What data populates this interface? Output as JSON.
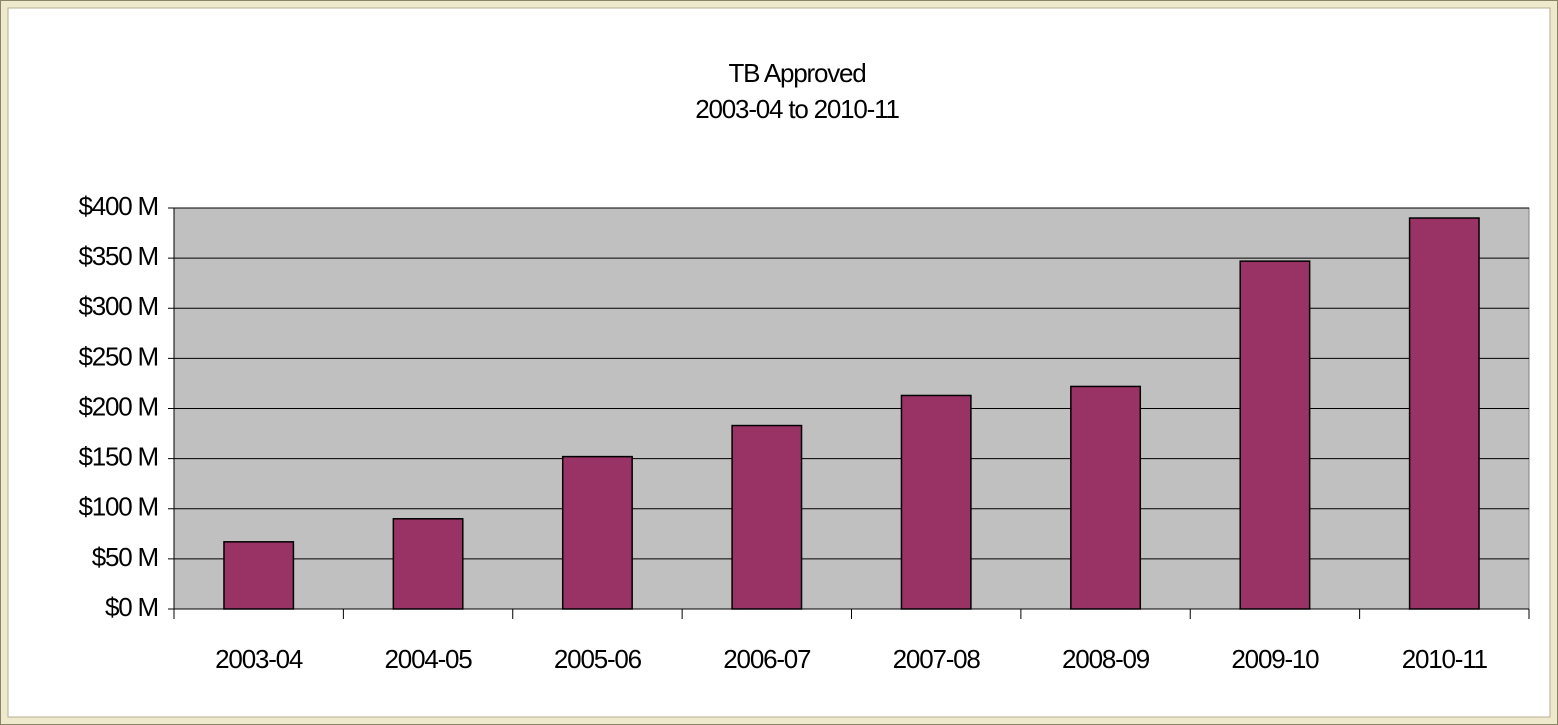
{
  "chart_data": {
    "type": "bar",
    "title": "TB Approved",
    "subtitle": "2003-04 to 2010-11",
    "categories": [
      "2003-04",
      "2004-05",
      "2005-06",
      "2006-07",
      "2007-08",
      "2008-09",
      "2009-10",
      "2010-11"
    ],
    "values": [
      67,
      90,
      152,
      183,
      213,
      222,
      347,
      390
    ],
    "color": "#993366",
    "ylim": [
      0,
      400
    ],
    "yticks": [
      {
        "value": 0,
        "label": "$0 M"
      },
      {
        "value": 50,
        "label": "$50 M"
      },
      {
        "value": 100,
        "label": "$100 M"
      },
      {
        "value": 150,
        "label": "$150 M"
      },
      {
        "value": 200,
        "label": "$200 M"
      },
      {
        "value": 250,
        "label": "$250 M"
      },
      {
        "value": 300,
        "label": "$300 M"
      },
      {
        "value": 350,
        "label": "$350 M"
      },
      {
        "value": 400,
        "label": "$400 M"
      }
    ],
    "grid": true
  }
}
